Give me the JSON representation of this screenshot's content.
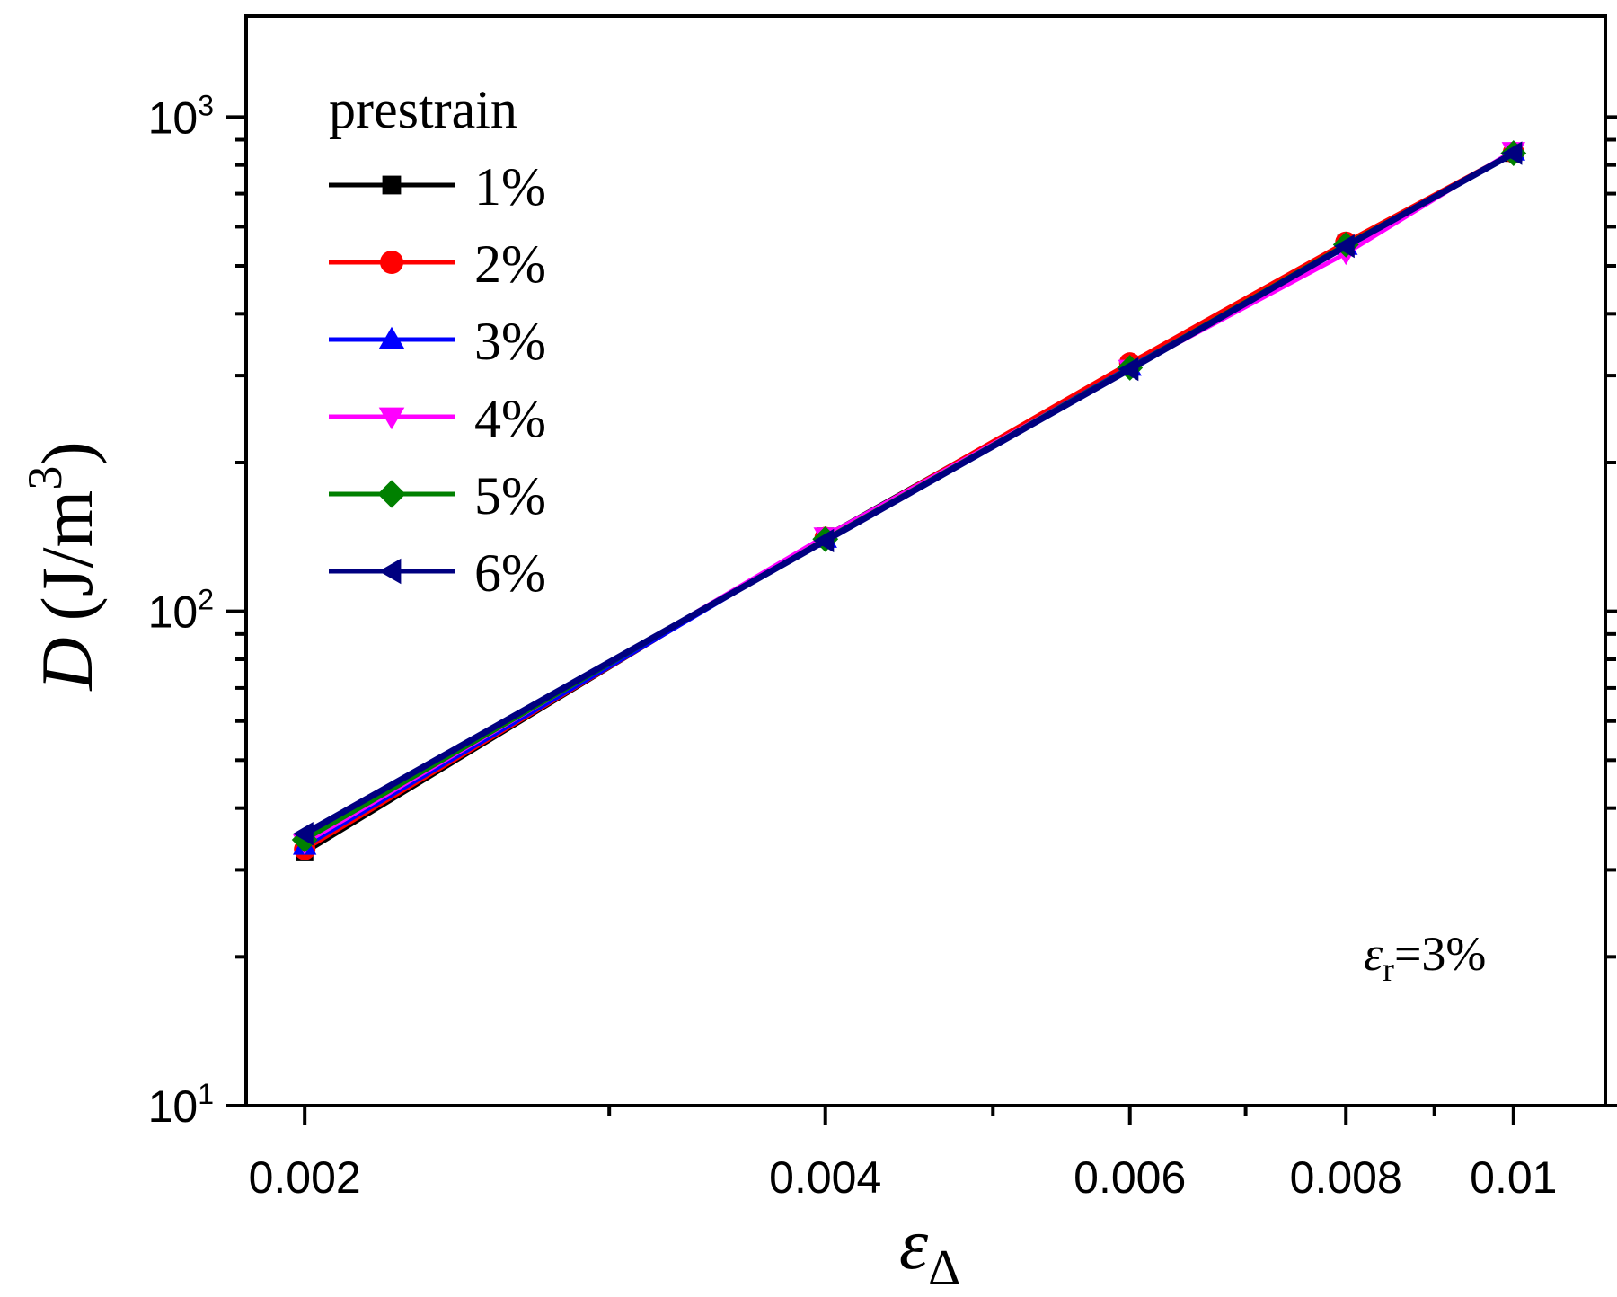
{
  "chart_data": {
    "type": "line",
    "x_scale": "log",
    "y_scale": "log",
    "xlim": [
      0.00185,
      0.0113
    ],
    "ylim": [
      10,
      1600
    ],
    "x_ticks": [
      0.002,
      0.004,
      0.006,
      0.008,
      0.01
    ],
    "x_tick_labels": [
      "0.002",
      "0.004",
      "0.006",
      "0.008",
      "0.01"
    ],
    "y_ticks": [
      10,
      100,
      1000
    ],
    "y_tick_labels": [
      {
        "base": "10",
        "exp": "1"
      },
      {
        "base": "10",
        "exp": "2"
      },
      {
        "base": "10",
        "exp": "3"
      }
    ],
    "xlabel": {
      "symbol": "ε",
      "subscript": "Δ"
    },
    "ylabel": {
      "symbol": "D",
      "unit": "(J/m",
      "unit_exp": "3",
      "unit_close": ")"
    },
    "legend": {
      "title": "prestrain",
      "position": "top-left"
    },
    "annotation": {
      "symbol": "ε",
      "subscript": "r",
      "text": "=3%"
    },
    "x": [
      0.002,
      0.004,
      0.006,
      0.008,
      0.01
    ],
    "series": [
      {
        "name": "1%",
        "color": "#000000",
        "marker": "square",
        "values": [
          32.5,
          142,
          315,
          555,
          845
        ]
      },
      {
        "name": "2%",
        "color": "#ff0000",
        "marker": "circle",
        "values": [
          33,
          141,
          318,
          558,
          848
        ]
      },
      {
        "name": "3%",
        "color": "#0000ff",
        "marker": "triangle-up",
        "values": [
          33.5,
          140,
          312,
          548,
          850
        ]
      },
      {
        "name": "4%",
        "color": "#ff00ff",
        "marker": "triangle-down",
        "values": [
          34,
          142,
          310,
          530,
          855
        ]
      },
      {
        "name": "5%",
        "color": "#008000",
        "marker": "diamond",
        "values": [
          34.5,
          140,
          311,
          552,
          845
        ]
      },
      {
        "name": "6%",
        "color": "#000080",
        "marker": "triangle-left",
        "values": [
          35.5,
          139,
          309,
          548,
          845
        ]
      }
    ]
  }
}
